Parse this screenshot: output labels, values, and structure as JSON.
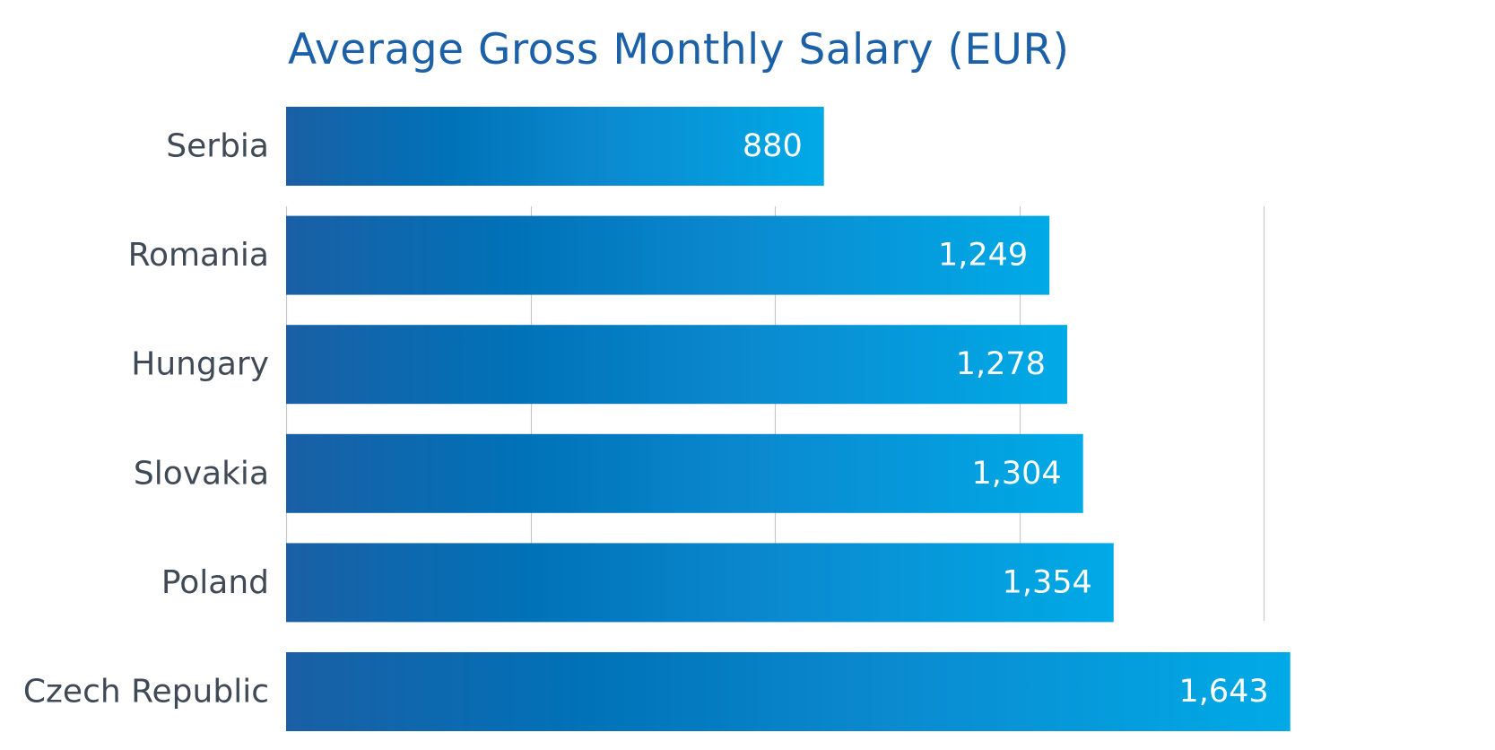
{
  "colors": {
    "title": "#1c61a8",
    "category_label": "#3f4a56",
    "value_label": "#ffffff",
    "gridline": "#c8c8c8",
    "bar_gradient": [
      "#1a5fa5",
      "#0072b8",
      "#0b8ad0",
      "#00aae6"
    ]
  },
  "chart_data": {
    "type": "bar",
    "orientation": "horizontal",
    "title": "Average Gross Monthly Salary (EUR)",
    "xlabel": "",
    "ylabel": "",
    "categories": [
      "Serbia",
      "Romania",
      "Hungary",
      "Slovakia",
      "Poland",
      "Czech Republic"
    ],
    "values": [
      880,
      1249,
      1278,
      1304,
      1354,
      1643
    ],
    "value_labels": [
      "880",
      "1,249",
      "1,278",
      "1,304",
      "1,354",
      "1,643"
    ],
    "xlim": [
      0,
      1700
    ],
    "gridlines": [
      0,
      400,
      800,
      1200,
      1600
    ],
    "grid": true,
    "legend": "none"
  }
}
